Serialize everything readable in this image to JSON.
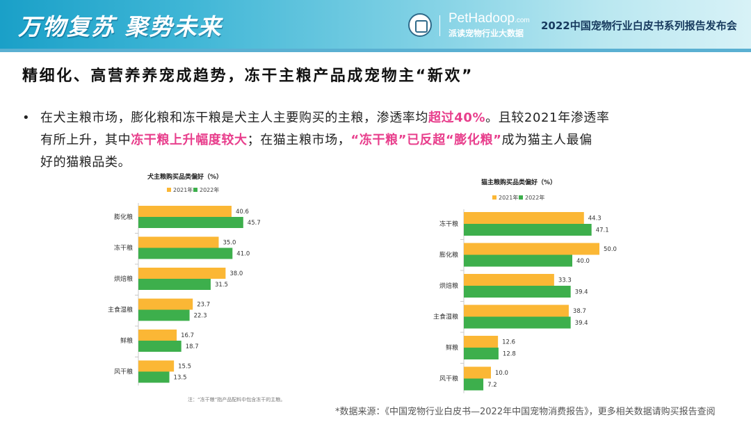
{
  "header": {
    "slogan": "万物复苏  聚势未来",
    "brand_name": "PetHadoop",
    "brand_domain": ".com",
    "brand_sub": "派读宠物行业大数据",
    "event_title": "2022中国宠物行业白皮书系列报告发布会",
    "logo_icon": "pet-society-emblem-icon"
  },
  "headline": "精细化、高营养养宠成趋势，冻干主粮产品成宠物主“新欢”",
  "paragraph": {
    "bullet": "•",
    "l1_a": "在犬主粮市场，膨化粮和冻干粮是犬主人主要购买的主粮，渗透率均",
    "l1_hl": "超过40%",
    "l1_b": "。且较2021年渗透率",
    "l2_a": "有所上升，其中",
    "l2_hl1": "冻干粮上升幅度较大",
    "l2_b": "；在猫主粮市场，",
    "l2_hl2": "“冻干粮”已反超“膨化粮”",
    "l2_c": "成为猫主人最偏",
    "l3": "好的猫粮品类。"
  },
  "colors": {
    "y2021": "#fbb735",
    "y2022": "#3daf4c",
    "highlight": "#e83e8c"
  },
  "source": "*数据来源：《中国宠物行业白皮书—2022年中国宠物消费报告》，更多相关数据请购买报告查阅",
  "chart_data": [
    {
      "type": "bar",
      "orientation": "horizontal",
      "title": "犬主粮购买品类偏好（%）",
      "categories": [
        "膨化粮",
        "冻干粮",
        "烘焙粮",
        "主食湿粮",
        "鲜粮",
        "风干粮"
      ],
      "series": [
        {
          "name": "2021年",
          "values": [
            40.6,
            35.0,
            38.0,
            23.7,
            16.7,
            15.5
          ]
        },
        {
          "name": "2022年",
          "values": [
            45.7,
            41.0,
            31.5,
            22.3,
            18.7,
            13.5
          ]
        }
      ],
      "legend_position": "top",
      "grid": false,
      "note": "注：“冻干粮”指产品配料中包含冻干的主粮。"
    },
    {
      "type": "bar",
      "orientation": "horizontal",
      "title": "猫主粮购买品类偏好（%）",
      "categories": [
        "冻干粮",
        "膨化粮",
        "烘焙粮",
        "主食湿粮",
        "鲜粮",
        "风干粮"
      ],
      "series": [
        {
          "name": "2021年",
          "values": [
            44.3,
            50.0,
            33.3,
            38.7,
            12.6,
            10.0
          ]
        },
        {
          "name": "2022年",
          "values": [
            47.1,
            40.0,
            39.4,
            39.4,
            12.8,
            7.2
          ]
        }
      ],
      "legend_position": "top",
      "grid": false
    }
  ]
}
